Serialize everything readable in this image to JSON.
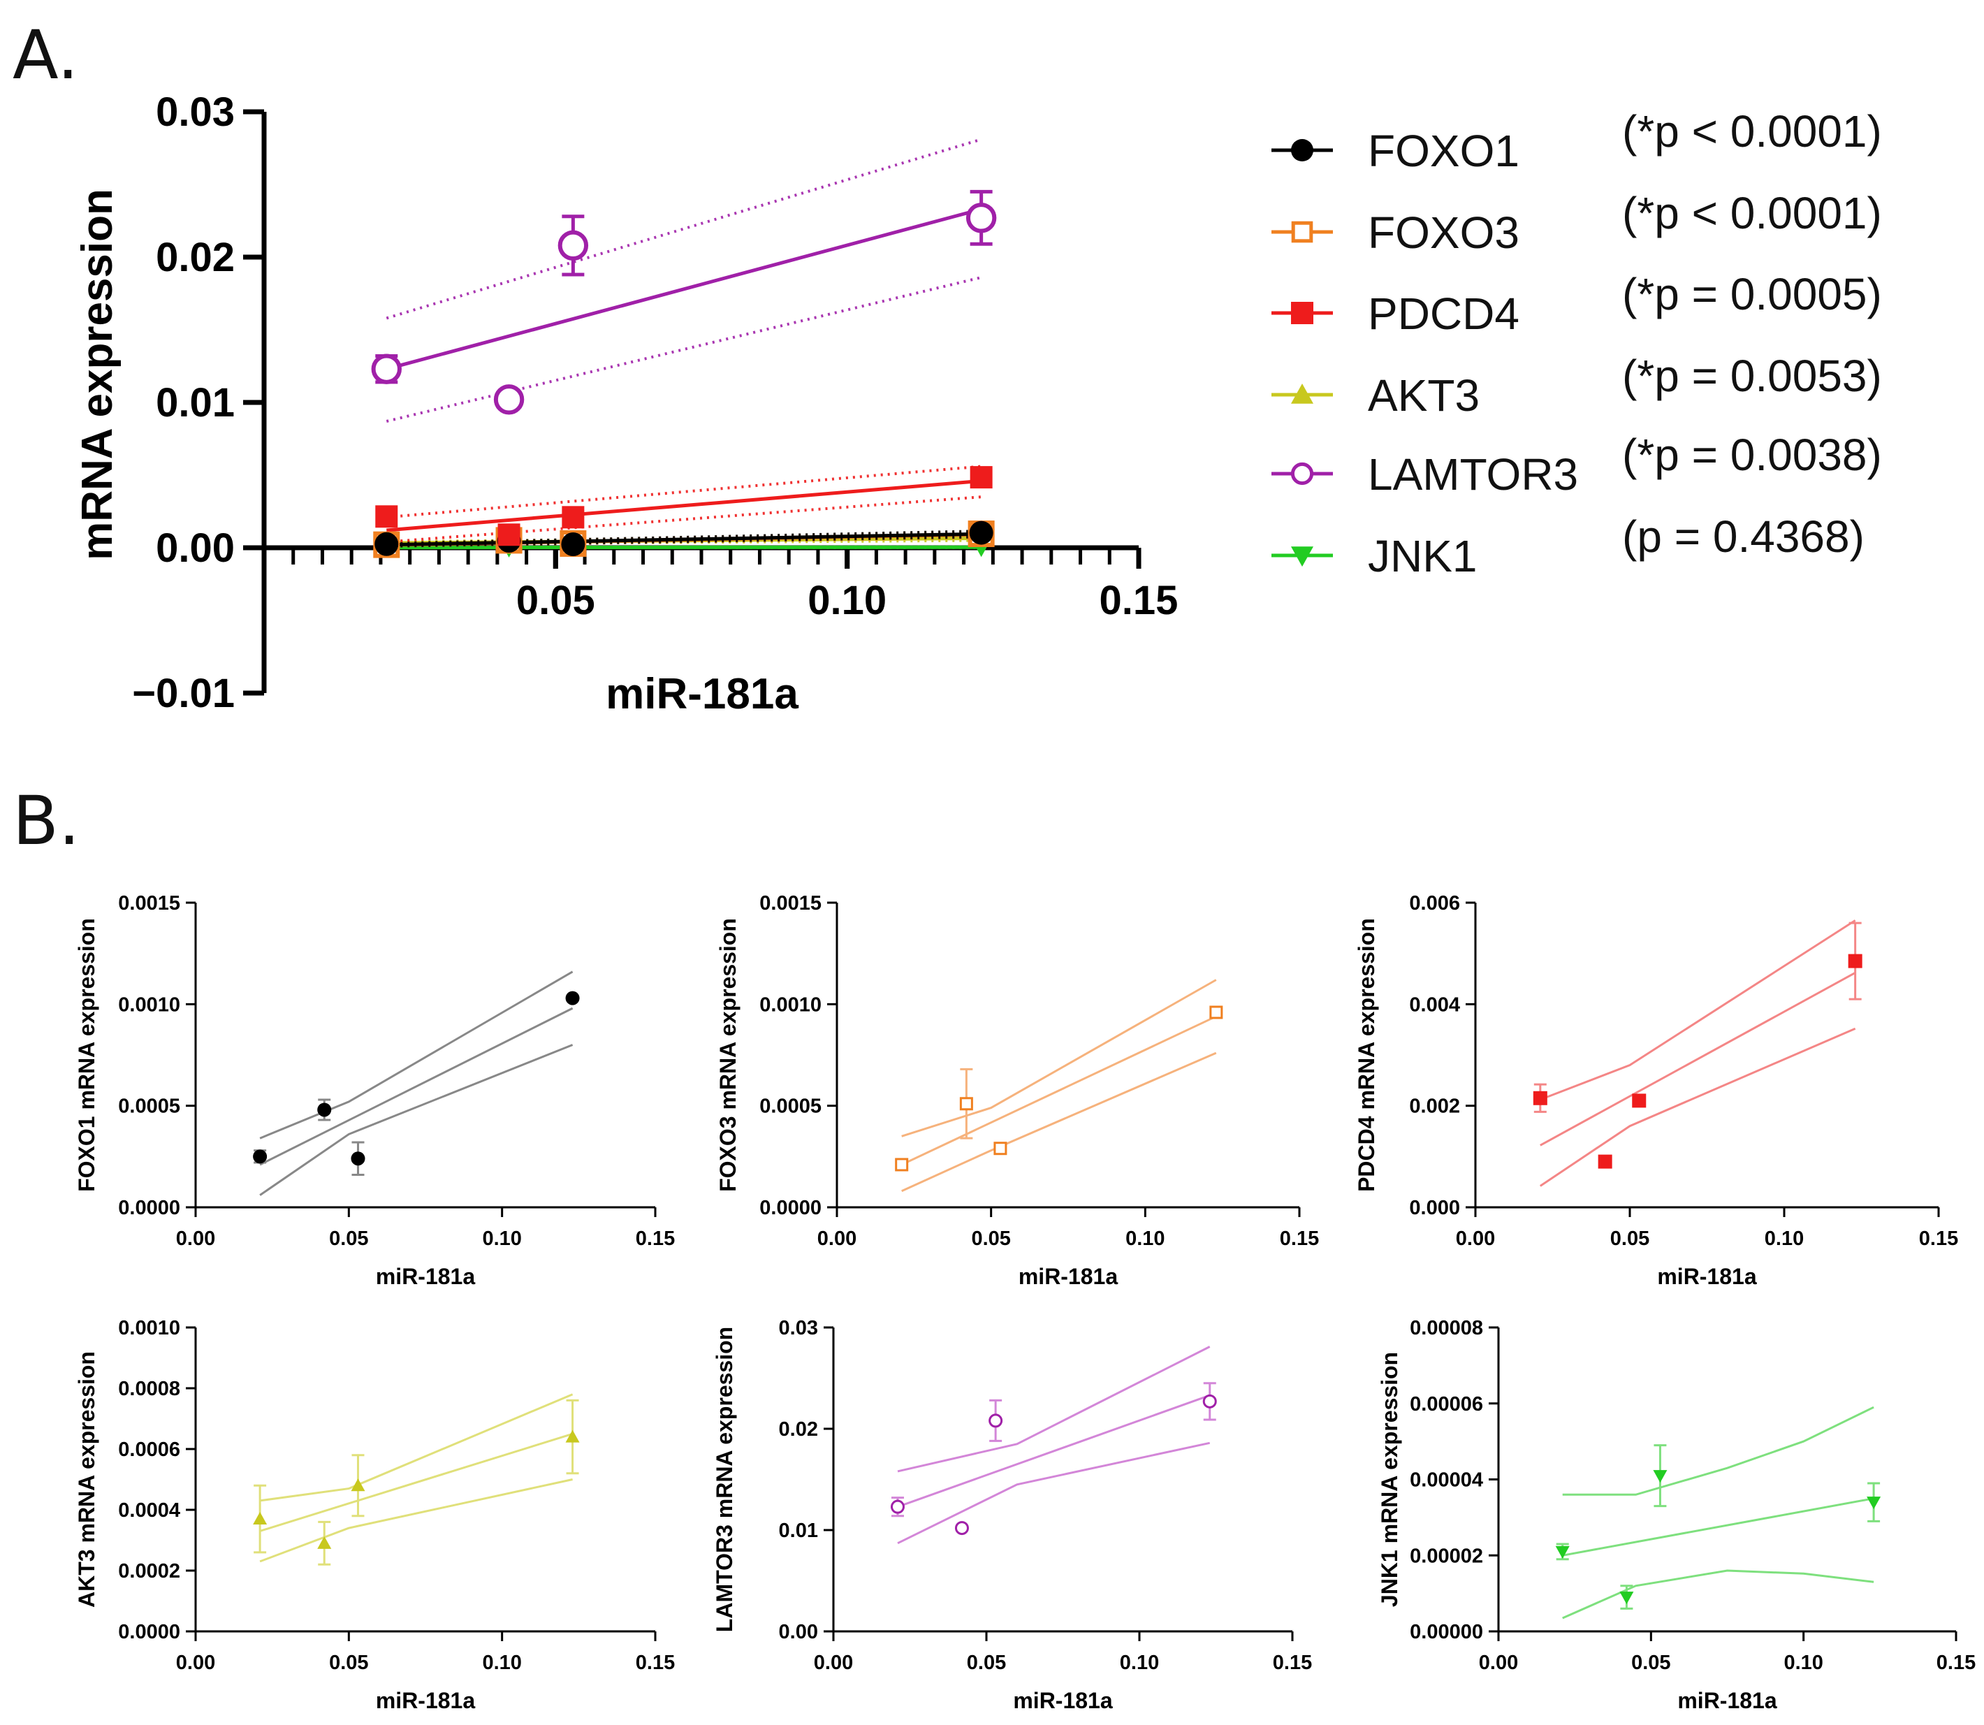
{
  "panels": {
    "a": "A.",
    "b": "B."
  },
  "chart_data": [
    {
      "id": "A",
      "type": "scatter",
      "title": "",
      "xlabel": "miR-181a",
      "ylabel": "mRNA expression",
      "xlim": [
        0,
        0.15
      ],
      "ylim": [
        -0.01,
        0.03
      ],
      "xticks": [
        "0.05",
        "0.10",
        "0.15"
      ],
      "yticks": [
        "−0.01",
        "0.00",
        "0.01",
        "0.02",
        "0.03"
      ],
      "legend_position": "right",
      "series": [
        {
          "name": "FOXO1",
          "stat": "(*p < 0.0001)",
          "color": "#000000",
          "marker": "circle-filled",
          "x": [
            0.021,
            0.042,
            0.053,
            0.123
          ],
          "y": [
            0.00025,
            0.00048,
            0.00024,
            0.00103
          ],
          "fit": [
            [
              0.021,
              0.0002
            ],
            [
              0.123,
              0.00095
            ]
          ],
          "band_upper": [
            [
              0.021,
              0.0003
            ],
            [
              0.123,
              0.00115
            ]
          ],
          "band_lower": [
            [
              0.021,
              0.0001
            ],
            [
              0.123,
              0.00075
            ]
          ]
        },
        {
          "name": "FOXO3",
          "stat": "(*p < 0.0001)",
          "color": "#f08020",
          "marker": "square-open",
          "x": [
            0.021,
            0.042,
            0.053,
            0.123
          ],
          "y": [
            0.00021,
            0.00051,
            0.00029,
            0.00096
          ],
          "fit": [
            [
              0.021,
              0.00018
            ],
            [
              0.123,
              0.0009
            ]
          ],
          "band_upper": [
            [
              0.021,
              0.0003
            ],
            [
              0.123,
              0.0011
            ]
          ],
          "band_lower": [
            [
              0.021,
              0.0001
            ],
            [
              0.123,
              0.0007
            ]
          ]
        },
        {
          "name": "PDCD4",
          "stat": "(*p = 0.0005)",
          "color": "#ee1c1c",
          "marker": "square-filled",
          "x": [
            0.021,
            0.042,
            0.053,
            0.123
          ],
          "y": [
            0.00215,
            0.0009,
            0.0021,
            0.00485
          ],
          "fit": [
            [
              0.021,
              0.0012
            ],
            [
              0.123,
              0.0046
            ]
          ],
          "band_upper": [
            [
              0.021,
              0.0021
            ],
            [
              0.123,
              0.0056
            ]
          ],
          "band_lower": [
            [
              0.021,
              0.0004
            ],
            [
              0.123,
              0.0035
            ]
          ]
        },
        {
          "name": "AKT3",
          "stat": "(*p = 0.0053)",
          "color": "#c8c81e",
          "marker": "triangle-up",
          "x": [
            0.021,
            0.042,
            0.053,
            0.123
          ],
          "y": [
            0.00037,
            0.00029,
            0.00048,
            0.00064
          ],
          "fit": [
            [
              0.021,
              0.00033
            ],
            [
              0.123,
              0.00065
            ]
          ],
          "band_upper": [
            [
              0.021,
              0.00043
            ],
            [
              0.123,
              0.00078
            ]
          ],
          "band_lower": [
            [
              0.021,
              0.00023
            ],
            [
              0.123,
              0.0005
            ]
          ]
        },
        {
          "name": "LAMTOR3",
          "stat": "(*p = 0.0038)",
          "color": "#a020a8",
          "marker": "circle-open",
          "x": [
            0.021,
            0.042,
            0.053,
            0.123
          ],
          "y": [
            0.0123,
            0.0102,
            0.0208,
            0.0227
          ],
          "fit": [
            [
              0.021,
              0.0123
            ],
            [
              0.123,
              0.0233
            ]
          ],
          "band_upper": [
            [
              0.021,
              0.0158
            ],
            [
              0.123,
              0.0281
            ]
          ],
          "band_lower": [
            [
              0.021,
              0.0087
            ],
            [
              0.123,
              0.0186
            ]
          ]
        },
        {
          "name": "JNK1",
          "stat": "(p = 0.4368)",
          "color": "#22cc22",
          "marker": "triangle-down",
          "x": [
            0.021,
            0.042,
            0.053,
            0.123
          ],
          "y": [
            2e-05,
            9e-06,
            4.1e-05,
            3.4e-05
          ],
          "fit": [
            [
              0.021,
              2e-05
            ],
            [
              0.123,
              3.5e-05
            ]
          ],
          "band_upper": [
            [
              0.021,
              3.6e-05
            ],
            [
              0.123,
              5.8e-05
            ]
          ],
          "band_lower": [
            [
              0.021,
              4e-06
            ],
            [
              0.123,
              1.2e-05
            ]
          ]
        }
      ]
    },
    {
      "id": "B1",
      "type": "scatter",
      "xlabel": "miR-181a",
      "ylabel": "FOXO1 mRNA expression",
      "color": "#000000",
      "line_color": "#888888",
      "marker": "circle-filled",
      "xlim": [
        0,
        0.15
      ],
      "ylim": [
        0,
        0.0015
      ],
      "xticks": [
        "0.00",
        "0.05",
        "0.10",
        "0.15"
      ],
      "yticks": [
        "0.0000",
        "0.0005",
        "0.0010",
        "0.0015"
      ],
      "x": [
        0.021,
        0.042,
        0.053,
        0.123
      ],
      "y": [
        0.00025,
        0.00048,
        0.00024,
        0.00103
      ],
      "err": [
        3e-05,
        5e-05,
        8e-05,
        0.0
      ],
      "fit": [
        [
          0.021,
          0.00021
        ],
        [
          0.123,
          0.00098
        ]
      ],
      "band_upper": [
        [
          0.021,
          0.00034
        ],
        [
          0.05,
          0.00052
        ],
        [
          0.123,
          0.00116
        ]
      ],
      "band_lower": [
        [
          0.021,
          6e-05
        ],
        [
          0.05,
          0.00036
        ],
        [
          0.123,
          0.0008
        ]
      ]
    },
    {
      "id": "B2",
      "type": "scatter",
      "xlabel": "miR-181a",
      "ylabel": "FOXO3 mRNA expression",
      "color": "#f08020",
      "line_color": "#f6b27c",
      "marker": "square-open",
      "xlim": [
        0,
        0.15
      ],
      "ylim": [
        0,
        0.0015
      ],
      "xticks": [
        "0.00",
        "0.05",
        "0.10",
        "0.15"
      ],
      "yticks": [
        "0.0000",
        "0.0005",
        "0.0010",
        "0.0015"
      ],
      "x": [
        0.021,
        0.042,
        0.053,
        0.123
      ],
      "y": [
        0.00021,
        0.00051,
        0.00029,
        0.00096
      ],
      "err": [
        2e-05,
        0.00017,
        2e-05,
        0.0
      ],
      "fit": [
        [
          0.021,
          0.00021
        ],
        [
          0.123,
          0.00094
        ]
      ],
      "band_upper": [
        [
          0.021,
          0.00035
        ],
        [
          0.05,
          0.00049
        ],
        [
          0.123,
          0.00112
        ]
      ],
      "band_lower": [
        [
          0.021,
          8e-05
        ],
        [
          0.05,
          0.00028
        ],
        [
          0.123,
          0.00076
        ]
      ]
    },
    {
      "id": "B3",
      "type": "scatter",
      "xlabel": "miR-181a",
      "ylabel": "PDCD4 mRNA expression",
      "color": "#ee1c1c",
      "line_color": "#f48686",
      "marker": "square-filled",
      "xlim": [
        0,
        0.15
      ],
      "ylim": [
        0,
        0.006
      ],
      "xticks": [
        "0.00",
        "0.05",
        "0.10",
        "0.15"
      ],
      "yticks": [
        "0.000",
        "0.002",
        "0.004",
        "0.006"
      ],
      "x": [
        0.021,
        0.042,
        0.053,
        0.123
      ],
      "y": [
        0.00215,
        0.0009,
        0.0021,
        0.00485
      ],
      "err": [
        0.00027,
        0.0,
        0.0,
        0.00075
      ],
      "fit": [
        [
          0.021,
          0.00122
        ],
        [
          0.123,
          0.00462
        ]
      ],
      "band_upper": [
        [
          0.021,
          0.00212
        ],
        [
          0.05,
          0.0028
        ],
        [
          0.123,
          0.00565
        ]
      ],
      "band_lower": [
        [
          0.021,
          0.00042
        ],
        [
          0.05,
          0.0016
        ],
        [
          0.123,
          0.00352
        ]
      ]
    },
    {
      "id": "B4",
      "type": "scatter",
      "xlabel": "miR-181a",
      "ylabel": "AKT3 mRNA expression",
      "color": "#c8c81e",
      "line_color": "#e0e07a",
      "marker": "triangle-up",
      "xlim": [
        0,
        0.15
      ],
      "ylim": [
        0,
        0.001
      ],
      "xticks": [
        "0.00",
        "0.05",
        "0.10",
        "0.15"
      ],
      "yticks": [
        "0.0000",
        "0.0002",
        "0.0004",
        "0.0006",
        "0.0008",
        "0.0010"
      ],
      "x": [
        0.021,
        0.042,
        0.053,
        0.123
      ],
      "y": [
        0.00037,
        0.00029,
        0.00048,
        0.00064
      ],
      "err": [
        0.00011,
        7e-05,
        0.0001,
        0.00012
      ],
      "fit": [
        [
          0.021,
          0.00033
        ],
        [
          0.123,
          0.00065
        ]
      ],
      "band_upper": [
        [
          0.021,
          0.00043
        ],
        [
          0.05,
          0.00047
        ],
        [
          0.123,
          0.00078
        ]
      ],
      "band_lower": [
        [
          0.021,
          0.00023
        ],
        [
          0.05,
          0.00034
        ],
        [
          0.123,
          0.0005
        ]
      ]
    },
    {
      "id": "B5",
      "type": "scatter",
      "xlabel": "miR-181a",
      "ylabel": "LAMTOR3 mRNA expression",
      "color": "#a020a8",
      "line_color": "#d386d8",
      "marker": "circle-open",
      "xlim": [
        0,
        0.15
      ],
      "ylim": [
        0,
        0.03
      ],
      "xticks": [
        "0.00",
        "0.05",
        "0.10",
        "0.15"
      ],
      "yticks": [
        "0.00",
        "0.01",
        "0.02",
        "0.03"
      ],
      "x": [
        0.021,
        0.042,
        0.053,
        0.123
      ],
      "y": [
        0.0123,
        0.0102,
        0.0208,
        0.0227
      ],
      "err": [
        0.0009,
        0.0,
        0.002,
        0.0018
      ],
      "fit": [
        [
          0.021,
          0.0123
        ],
        [
          0.123,
          0.0233
        ]
      ],
      "band_upper": [
        [
          0.021,
          0.0158
        ],
        [
          0.06,
          0.0185
        ],
        [
          0.123,
          0.0281
        ]
      ],
      "band_lower": [
        [
          0.021,
          0.0087
        ],
        [
          0.06,
          0.0145
        ],
        [
          0.123,
          0.0186
        ]
      ]
    },
    {
      "id": "B6",
      "type": "scatter",
      "xlabel": "miR-181a",
      "ylabel": "JNK1 mRNA expression",
      "color": "#22cc22",
      "line_color": "#7ee07e",
      "marker": "triangle-down",
      "xlim": [
        0,
        0.15
      ],
      "ylim": [
        0,
        8e-05
      ],
      "xticks": [
        "0.00",
        "0.05",
        "0.10",
        "0.15"
      ],
      "yticks": [
        "0.00000",
        "0.00002",
        "0.00004",
        "0.00006",
        "0.00008"
      ],
      "x": [
        0.021,
        0.042,
        0.053,
        0.123
      ],
      "y": [
        2.1e-05,
        9e-06,
        4.1e-05,
        3.4e-05
      ],
      "err": [
        2e-06,
        3e-06,
        8e-06,
        5e-06
      ],
      "fit": [
        [
          0.021,
          2e-05
        ],
        [
          0.123,
          3.5e-05
        ]
      ],
      "band_upper": [
        [
          0.021,
          3.6e-05
        ],
        [
          0.045,
          3.6e-05
        ],
        [
          0.075,
          4.3e-05
        ],
        [
          0.1,
          5e-05
        ],
        [
          0.123,
          5.9e-05
        ]
      ],
      "band_lower": [
        [
          0.021,
          3.5e-06
        ],
        [
          0.045,
          1.2e-05
        ],
        [
          0.075,
          1.6e-05
        ],
        [
          0.1,
          1.52e-05
        ],
        [
          0.123,
          1.3e-05
        ]
      ]
    }
  ]
}
